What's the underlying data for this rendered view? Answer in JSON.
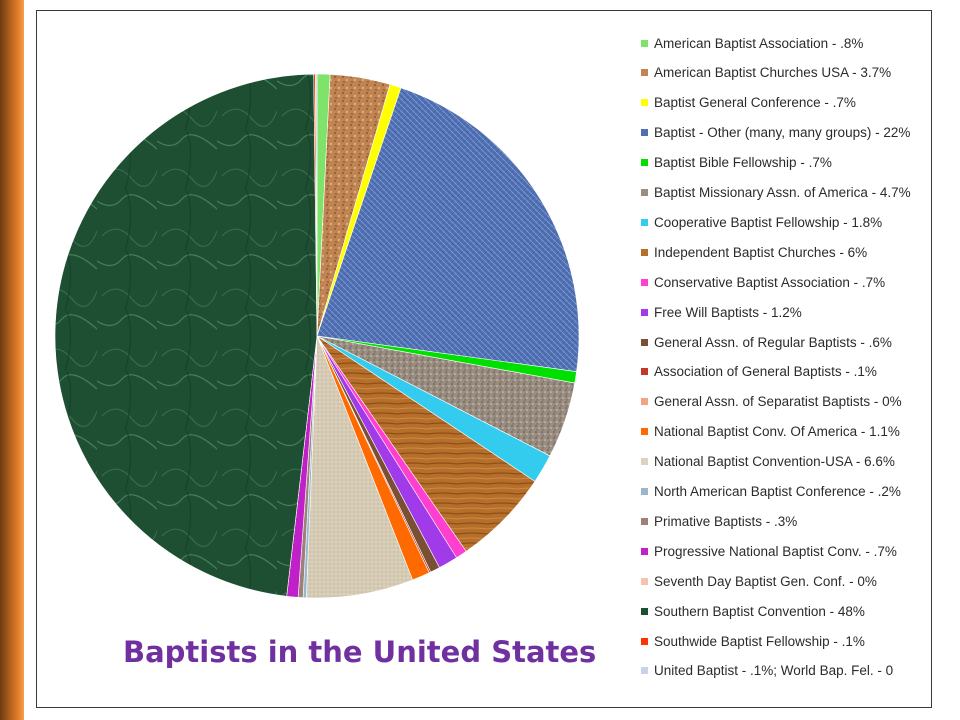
{
  "page": {
    "edge_accent_color": "#c86a1e"
  },
  "chart_data": {
    "type": "pie",
    "title": "Baptists in the United States",
    "title_color": "#7030a0",
    "legend_placement": "right",
    "start": "top",
    "direction": "clockwise",
    "slices": [
      {
        "label": "American Baptist Association - .8%",
        "value": 0.8,
        "color": "#7fe36b",
        "texture": "none"
      },
      {
        "label": "American Baptist Churches USA  - 3.7%",
        "value": 3.7,
        "color": "#c08552",
        "texture": "cork"
      },
      {
        "label": "Baptist General Conference - .7%",
        "value": 0.7,
        "color": "#ffff00",
        "texture": "none"
      },
      {
        "label": "Baptist - Other (many, many groups) - 22%",
        "value": 22,
        "color": "#4f6fb3",
        "texture": "denim"
      },
      {
        "label": "Baptist Bible Fellowship - .7%",
        "value": 0.7,
        "color": "#00e000",
        "texture": "none"
      },
      {
        "label": "Baptist Missionary Assn. of America  - 4.7%",
        "value": 4.7,
        "color": "#9a8e82",
        "texture": "granite"
      },
      {
        "label": "Cooperative Baptist Fellowship - 1.8%",
        "value": 1.8,
        "color": "#33ccee",
        "texture": "none"
      },
      {
        "label": "Independent Baptist Churches - 6%",
        "value": 6,
        "color": "#b66f2a",
        "texture": "wood"
      },
      {
        "label": "Conservative Baptist Association - .7%",
        "value": 0.7,
        "color": "#ff3fcf",
        "texture": "none"
      },
      {
        "label": "Free Will Baptists - 1.2%",
        "value": 1.2,
        "color": "#a13ae8",
        "texture": "none"
      },
      {
        "label": "General Assn. of Regular Baptists - .6%",
        "value": 0.6,
        "color": "#7a5035",
        "texture": "none"
      },
      {
        "label": "Association of General Baptists - .1%",
        "value": 0.1,
        "color": "#c0392b",
        "texture": "none"
      },
      {
        "label": "General Assn. of Separatist Baptists - 0%",
        "value": 0,
        "color": "#f4a480",
        "texture": "none"
      },
      {
        "label": "National Baptist Conv. Of America - 1.1%",
        "value": 1.1,
        "color": "#ff6a00",
        "texture": "none"
      },
      {
        "label": "National Baptist Convention-USA - 6.6%",
        "value": 6.6,
        "color": "#ddd2bd",
        "texture": "canvas"
      },
      {
        "label": "North American Baptist Conference - .2%",
        "value": 0.2,
        "color": "#99b7cc",
        "texture": "none"
      },
      {
        "label": "Primative Baptists - .3%",
        "value": 0.3,
        "color": "#9e7f7a",
        "texture": "none"
      },
      {
        "label": "Progressive National Baptist Conv. - .7%",
        "value": 0.7,
        "color": "#c020c8",
        "texture": "none"
      },
      {
        "label": "Seventh Day Baptist Gen. Conf. - 0%",
        "value": 0,
        "color": "#f6c2ae",
        "texture": "none"
      },
      {
        "label": "Southern Baptist Convention - 48%",
        "value": 48,
        "color": "#1f4f33",
        "texture": "marble"
      },
      {
        "label": "Southwide Baptist Fellowship - .1%",
        "value": 0.1,
        "color": "#ff3300",
        "texture": "none"
      },
      {
        "label": "United Baptist - .1%; World Bap. Fel. - 0",
        "value": 0.1,
        "color": "#c9d3e6",
        "texture": "none"
      }
    ]
  }
}
